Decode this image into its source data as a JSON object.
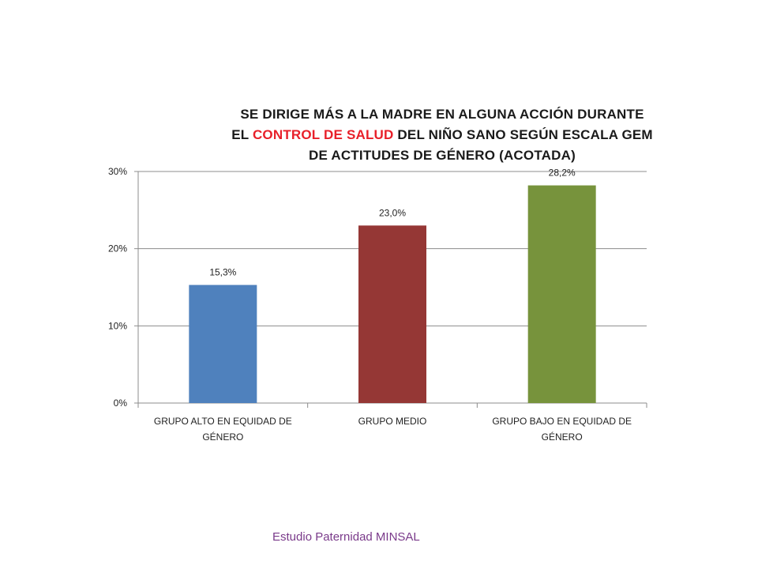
{
  "chart_data": {
    "type": "bar",
    "title": {
      "line1": "SE DIRIGE MÁS A LA MADRE EN ALGUNA ACCIÓN DURANTE",
      "line2_prefix": "EL ",
      "line2_highlight": "CONTROL DE SALUD",
      "line2_suffix": " DEL NIÑO SANO SEGÚN ESCALA GEM",
      "line3": "DE ACTITUDES DE GÉNERO (ACOTADA)"
    },
    "categories": [
      [
        "GRUPO ALTO EN EQUIDAD DE",
        "GÉNERO"
      ],
      [
        "GRUPO  MEDIO"
      ],
      [
        "GRUPO BAJO EN EQUIDAD DE",
        "GÉNERO"
      ]
    ],
    "values": [
      15.3,
      23.0,
      28.2
    ],
    "data_labels": [
      "15,3%",
      "23,0%",
      "28,2%"
    ],
    "bar_colors": [
      "#4f81bd",
      "#953735",
      "#77933c"
    ],
    "ylim": [
      0,
      30
    ],
    "y_ticks": [
      {
        "value": 0,
        "label": "0%"
      },
      {
        "value": 10,
        "label": "10%"
      },
      {
        "value": 20,
        "label": "20%"
      },
      {
        "value": 30,
        "label": "30%"
      }
    ],
    "grid": true,
    "legend": "none"
  },
  "footer": {
    "source": "Estudio Paternidad MINSAL",
    "color": "#7a3a8a"
  },
  "accent_color": "#e8202a"
}
